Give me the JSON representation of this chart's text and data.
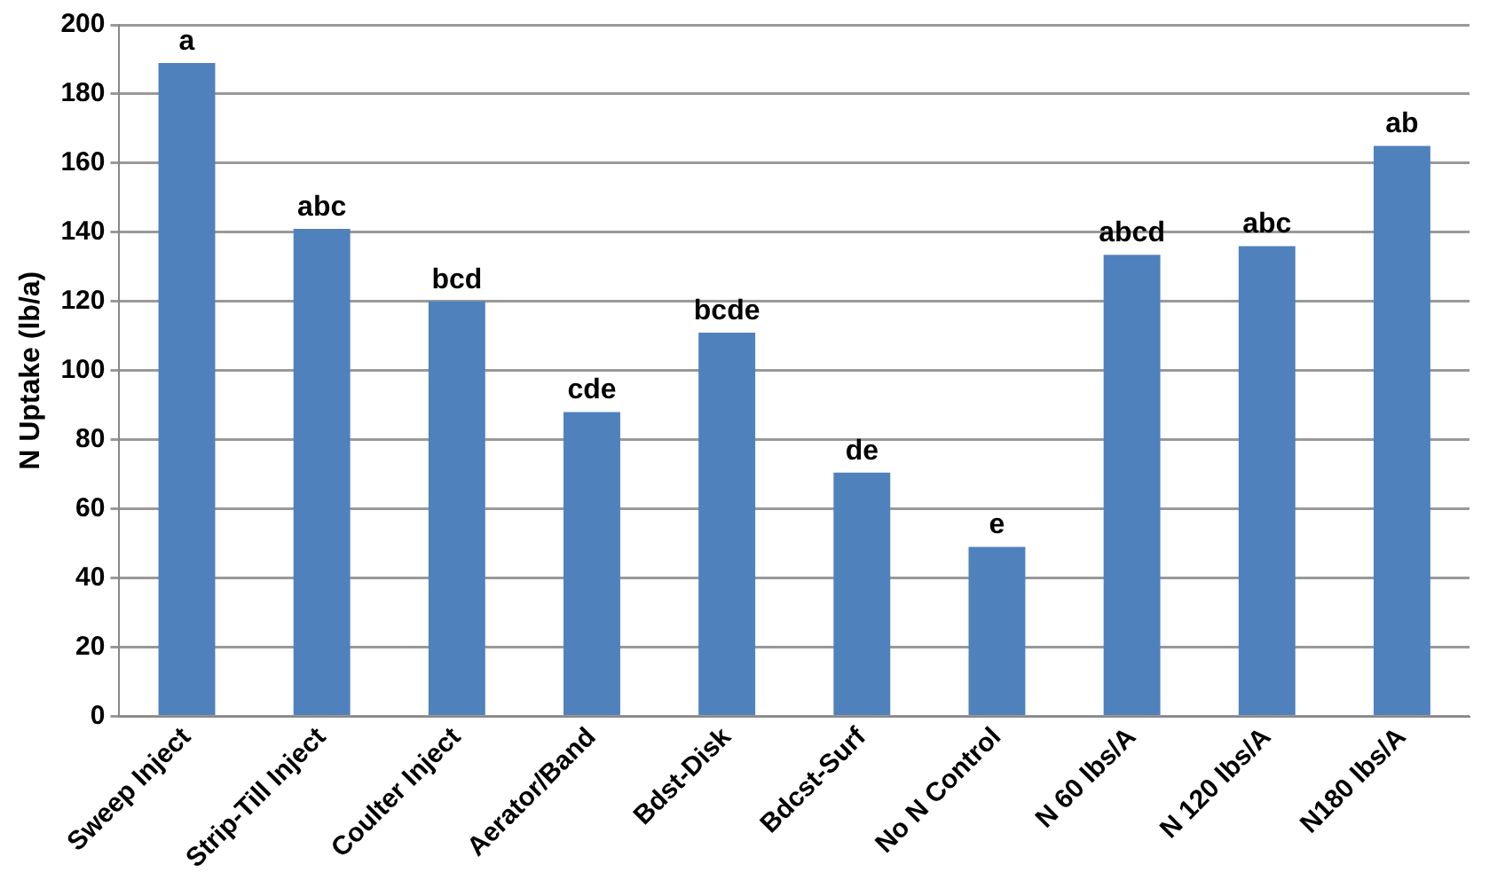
{
  "chart_data": {
    "type": "bar",
    "ylabel": "N Uptake (lb/a)",
    "categories": [
      "Sweep Inject",
      "Strip-Till Inject",
      "Coulter Inject",
      "Aerator/Band",
      "Bdst-Disk",
      "Bdcst-Surf",
      "No N Control",
      "N 60 lbs/A",
      "N 120 lbs/A",
      "N180 lbs/A"
    ],
    "values": [
      189,
      141,
      120,
      88,
      111,
      70.5,
      49,
      133.5,
      136,
      165
    ],
    "color": "#4f81bd",
    "ylim": [
      0,
      200
    ],
    "yticks": [
      0,
      20,
      40,
      60,
      80,
      100,
      120,
      140,
      160,
      180,
      200
    ],
    "grid": "y",
    "legend": false,
    "annotations": [
      {
        "text": "a",
        "x": "Sweep Inject",
        "y": 189
      },
      {
        "text": "abc",
        "x": "Strip-Till Inject",
        "y": 141
      },
      {
        "text": "bcd",
        "x": "Coulter Inject",
        "y": 120
      },
      {
        "text": "cde",
        "x": "Aerator/Band",
        "y": 88
      },
      {
        "text": "bcde",
        "x": "Bdst-Disk",
        "y": 111
      },
      {
        "text": "de",
        "x": "Bdcst-Surf",
        "y": 70.5
      },
      {
        "text": "e",
        "x": "No N Control",
        "y": 49
      },
      {
        "text": "abcd",
        "x": "N 60 lbs/A",
        "y": 133.5
      },
      {
        "text": "abc",
        "x": "N 120 lbs/A",
        "y": 136
      },
      {
        "text": "ab",
        "x": "N180 lbs/A",
        "y": 165
      }
    ]
  }
}
